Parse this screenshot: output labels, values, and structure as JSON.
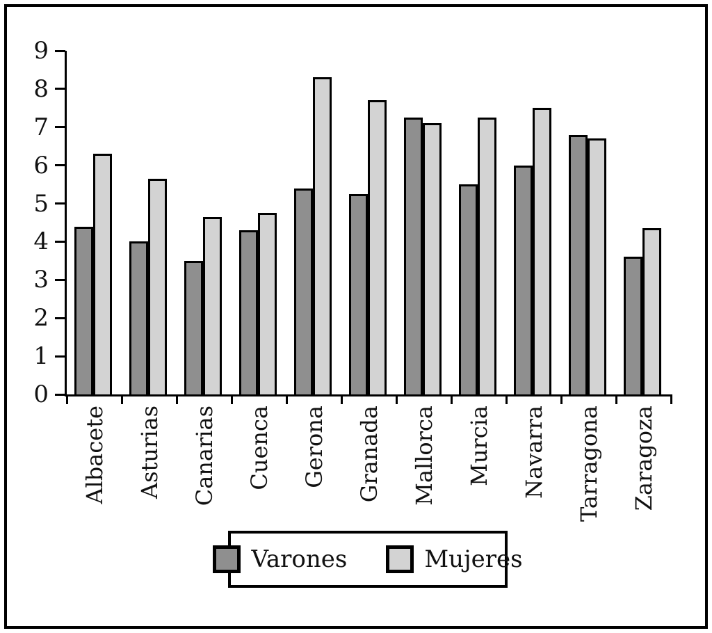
{
  "chart_data": {
    "type": "bar",
    "title": "",
    "xlabel": "",
    "ylabel": "",
    "categories": [
      "Albacete",
      "Asturias",
      "Canarias",
      "Cuenca",
      "Gerona",
      "Granada",
      "Mallorca",
      "Murcia",
      "Navarra",
      "Tarragona",
      "Zaragoza"
    ],
    "series": [
      {
        "name": "Varones",
        "color": "#8f8f8f",
        "values": [
          4.4,
          4.0,
          3.5,
          4.3,
          5.4,
          5.25,
          7.25,
          5.5,
          6.0,
          6.8,
          3.6
        ]
      },
      {
        "name": "Mujeres",
        "color": "#d3d3d3",
        "values": [
          6.3,
          5.65,
          4.65,
          4.75,
          8.3,
          7.7,
          7.1,
          7.25,
          7.5,
          6.7,
          4.35
        ]
      }
    ],
    "ylim": [
      0,
      9
    ],
    "yticks": [
      0,
      1,
      2,
      3,
      4,
      5,
      6,
      7,
      8,
      9
    ],
    "grid": false,
    "legend_position": "bottom-center",
    "bar_border_color": "#000000",
    "frame_color": "#000000",
    "background_color": "#ffffff"
  }
}
